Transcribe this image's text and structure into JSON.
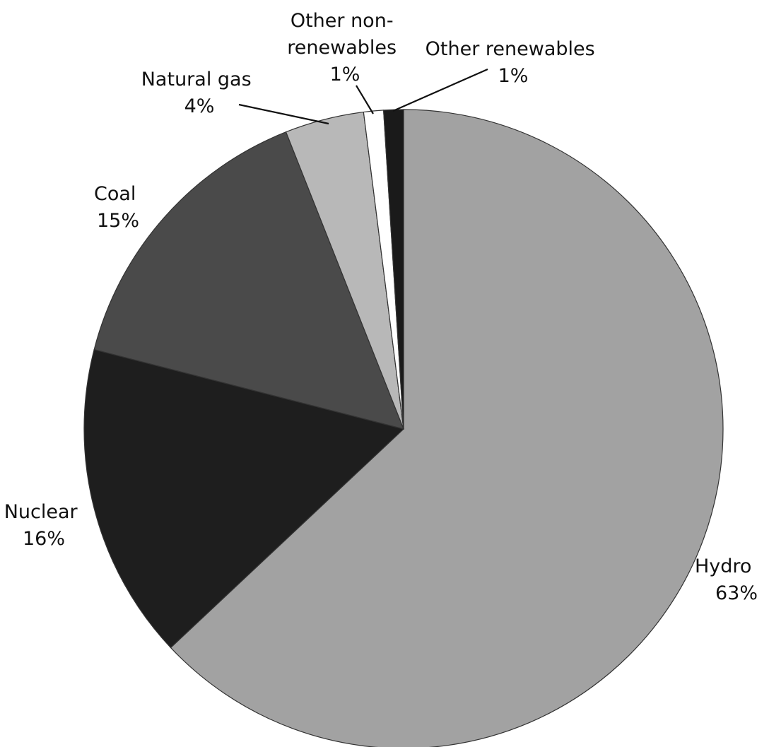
{
  "chart_data": {
    "type": "pie",
    "title": "",
    "slices": [
      {
        "name": "Hydro",
        "value": 63,
        "percent_label": "63%",
        "color": "#a2a2a2"
      },
      {
        "name": "Nuclear",
        "value": 16,
        "percent_label": "16%",
        "color": "#1e1e1e"
      },
      {
        "name": "Coal",
        "value": 15,
        "percent_label": "15%",
        "color": "#4a4a4a"
      },
      {
        "name": "Natural gas",
        "value": 4,
        "percent_label": "4%",
        "color": "#b8b8b8"
      },
      {
        "name": "Other non-renewables",
        "value": 1,
        "percent_label": "1%",
        "color": "#ffffff"
      },
      {
        "name": "Other renewables",
        "value": 1,
        "percent_label": "1%",
        "color": "#1a1a1a"
      }
    ],
    "start_at_top": true,
    "direction": "clockwise"
  }
}
